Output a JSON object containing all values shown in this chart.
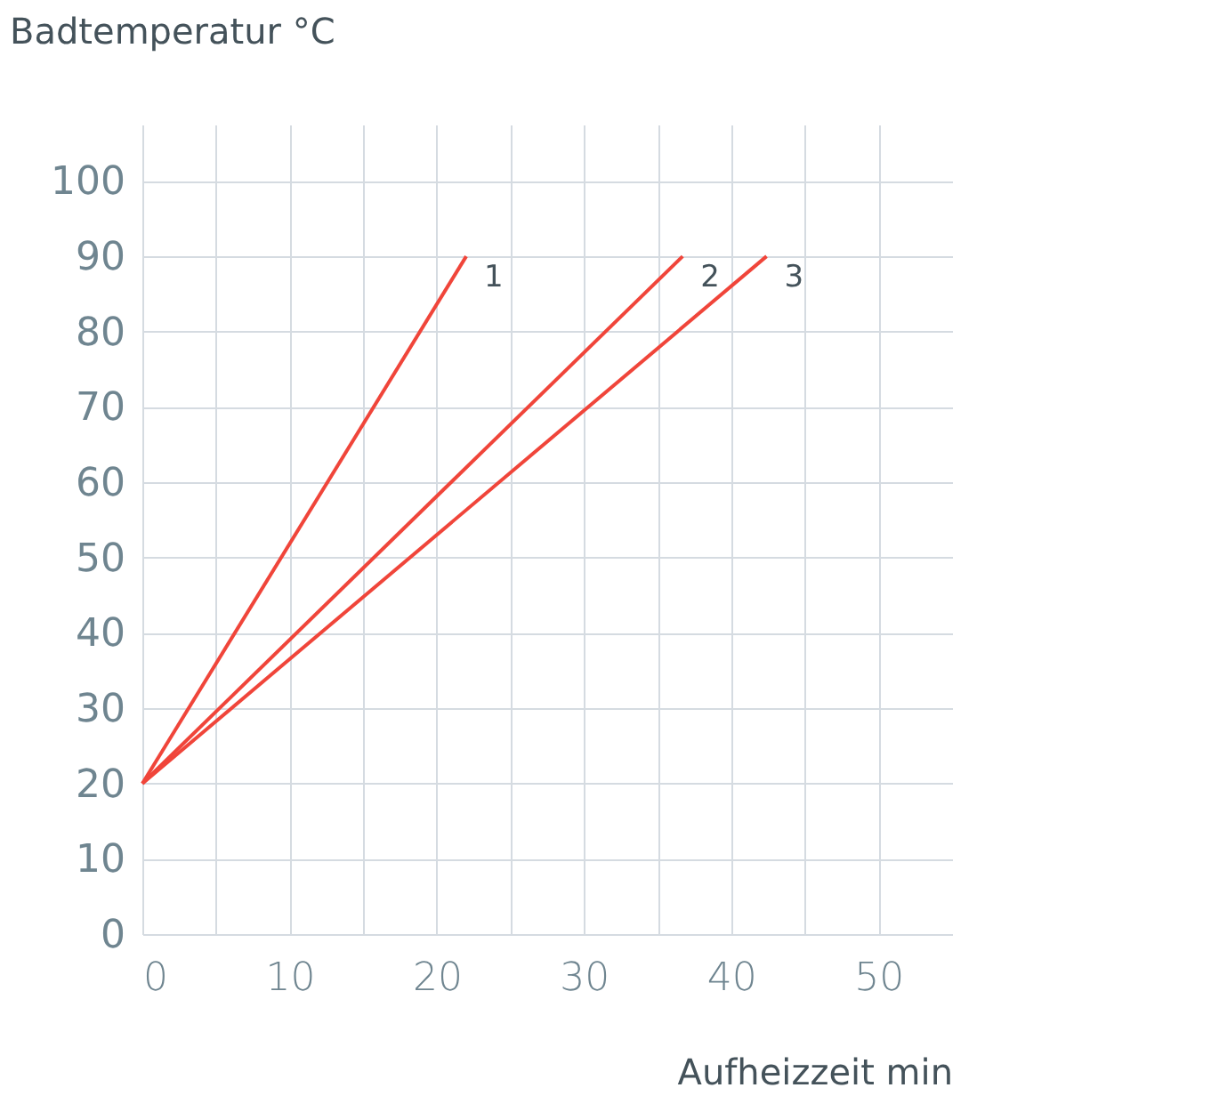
{
  "chart_data": {
    "type": "line",
    "xlabel": "Aufheizzeit min",
    "ylabel": "Badtemperatur °C",
    "xlim": [
      0,
      55
    ],
    "ylim": [
      0,
      107.5
    ],
    "xticks": [
      0,
      {
        "value": 5,
        "label": null
      },
      10,
      {
        "value": 15,
        "label": null
      },
      20,
      {
        "value": 25,
        "label": null
      },
      30,
      {
        "value": 35,
        "label": null
      },
      40,
      {
        "value": 45,
        "label": null
      },
      50
    ],
    "yticks": [
      0,
      10,
      20,
      30,
      40,
      50,
      60,
      70,
      80,
      90,
      100
    ],
    "grid": true,
    "legend": false,
    "marker": "none",
    "line_style": "solid",
    "series": [
      {
        "name": "1",
        "color": "#f0453a",
        "x": [
          0,
          22
        ],
        "values": [
          20,
          90
        ]
      },
      {
        "name": "2",
        "color": "#f0453a",
        "x": [
          0,
          36.7
        ],
        "values": [
          20,
          90
        ]
      },
      {
        "name": "3",
        "color": "#f0453a",
        "x": [
          0,
          42.4
        ],
        "values": [
          20,
          90
        ]
      }
    ]
  }
}
